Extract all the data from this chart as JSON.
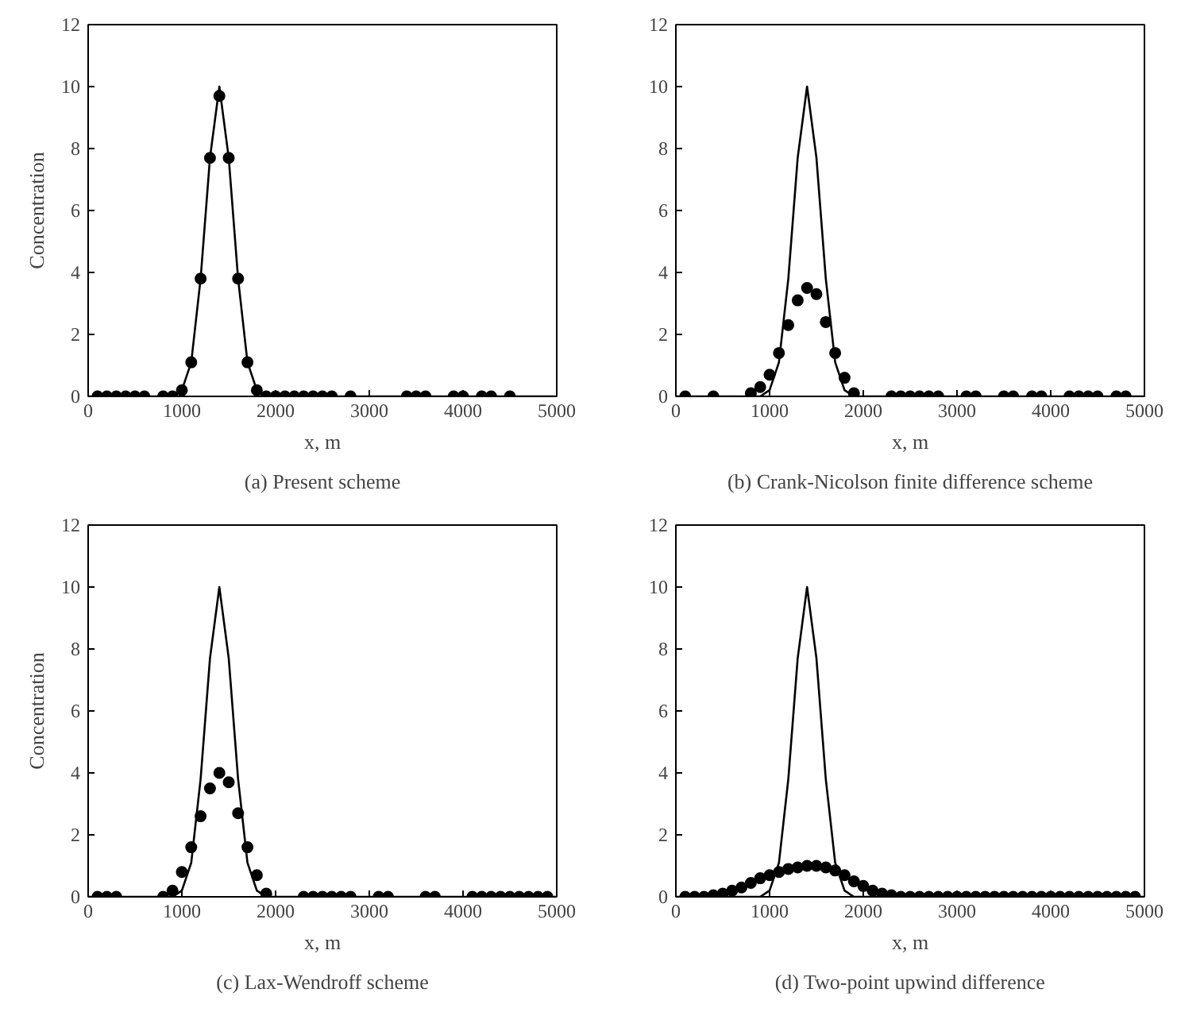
{
  "chart_data": [
    {
      "type": "line",
      "title": "(a) Present scheme",
      "xlabel": "x, m",
      "ylabel": "Concentration",
      "xlim": [
        0,
        5000
      ],
      "ylim": [
        0,
        12
      ],
      "xticks": [
        0,
        1000,
        2000,
        3000,
        4000,
        5000
      ],
      "yticks": [
        0,
        2,
        4,
        6,
        8,
        10,
        12
      ],
      "grid": false,
      "series": [
        {
          "color": "#000000",
          "marker": "none",
          "x": [
            0,
            900,
            1000,
            1100,
            1200,
            1300,
            1400,
            1500,
            1600,
            1700,
            1800,
            1900,
            5000
          ],
          "values": [
            0,
            0,
            0.2,
            1.1,
            3.8,
            7.7,
            10,
            7.7,
            3.8,
            1.1,
            0.2,
            0,
            0
          ]
        },
        {
          "type": "scatter",
          "color": "#000000",
          "marker": "circle",
          "x": [
            100,
            200,
            300,
            400,
            500,
            600,
            800,
            900,
            1000,
            1100,
            1200,
            1300,
            1400,
            1500,
            1600,
            1700,
            1800,
            1900,
            2000,
            2100,
            2200,
            2300,
            2400,
            2500,
            2600,
            2800,
            3400,
            3500,
            3600,
            3900,
            4000,
            4200,
            4300,
            4500
          ],
          "values": [
            0,
            0,
            0,
            0,
            0,
            0,
            0,
            0,
            0.2,
            1.1,
            3.8,
            7.7,
            9.7,
            7.7,
            3.8,
            1.1,
            0.2,
            0,
            0,
            0,
            0,
            0,
            0,
            0,
            0,
            0,
            0,
            0,
            0,
            0,
            0,
            0,
            0,
            0
          ]
        }
      ]
    },
    {
      "type": "line",
      "title": "(b) Crank-Nicolson finite difference scheme",
      "xlabel": "x, m",
      "xlim": [
        0,
        5000
      ],
      "ylim": [
        0,
        12
      ],
      "xticks": [
        0,
        1000,
        2000,
        3000,
        4000,
        5000
      ],
      "yticks": [
        0,
        2,
        4,
        6,
        8,
        10,
        12
      ],
      "grid": false,
      "series": [
        {
          "color": "#000000",
          "marker": "none",
          "x": [
            0,
            900,
            1000,
            1100,
            1200,
            1300,
            1400,
            1500,
            1600,
            1700,
            1800,
            1900,
            5000
          ],
          "values": [
            0,
            0,
            0.2,
            1.1,
            3.8,
            7.7,
            10,
            7.7,
            3.8,
            1.1,
            0.2,
            0,
            0
          ]
        },
        {
          "type": "scatter",
          "color": "#000000",
          "marker": "circle",
          "x": [
            100,
            400,
            800,
            900,
            1000,
            1100,
            1200,
            1300,
            1400,
            1500,
            1600,
            1700,
            1800,
            1900,
            2300,
            2400,
            2500,
            2600,
            2700,
            2800,
            3100,
            3200,
            3500,
            3600,
            3800,
            3900,
            4200,
            4300,
            4400,
            4500,
            4700,
            4800
          ],
          "values": [
            0,
            0,
            0.1,
            0.3,
            0.7,
            1.4,
            2.3,
            3.1,
            3.5,
            3.3,
            2.4,
            1.4,
            0.6,
            0.1,
            0,
            0,
            0,
            0,
            0,
            0,
            0,
            0,
            0,
            0,
            0,
            0,
            0,
            0,
            0,
            0,
            0,
            0
          ]
        }
      ]
    },
    {
      "type": "line",
      "title": "(c) Lax-Wendroff scheme",
      "xlabel": "x, m",
      "ylabel": "Concentration",
      "xlim": [
        0,
        5000
      ],
      "ylim": [
        0,
        12
      ],
      "xticks": [
        0,
        1000,
        2000,
        3000,
        4000,
        5000
      ],
      "yticks": [
        0,
        2,
        4,
        6,
        8,
        10,
        12
      ],
      "grid": false,
      "series": [
        {
          "color": "#000000",
          "marker": "none",
          "x": [
            0,
            900,
            1000,
            1100,
            1200,
            1300,
            1400,
            1500,
            1600,
            1700,
            1800,
            1900,
            5000
          ],
          "values": [
            0,
            0,
            0.2,
            1.1,
            3.8,
            7.7,
            10,
            7.7,
            3.8,
            1.1,
            0.2,
            0,
            0
          ]
        },
        {
          "type": "scatter",
          "color": "#000000",
          "marker": "circle",
          "x": [
            100,
            200,
            300,
            800,
            900,
            1000,
            1100,
            1200,
            1300,
            1400,
            1500,
            1600,
            1700,
            1800,
            1900,
            2300,
            2400,
            2500,
            2600,
            2700,
            2800,
            3100,
            3200,
            3600,
            3700,
            4100,
            4200,
            4300,
            4400,
            4500,
            4600,
            4700,
            4800,
            4900
          ],
          "values": [
            0,
            0,
            0,
            0,
            0.2,
            0.8,
            1.6,
            2.6,
            3.5,
            4.0,
            3.7,
            2.7,
            1.6,
            0.7,
            0.1,
            0,
            0,
            0,
            0,
            0,
            0,
            0,
            0,
            0,
            0,
            0,
            0,
            0,
            0,
            0,
            0,
            0,
            0,
            0
          ]
        }
      ]
    },
    {
      "type": "line",
      "title": "(d) Two-point upwind difference",
      "xlabel": "x, m",
      "xlim": [
        0,
        5000
      ],
      "ylim": [
        0,
        12
      ],
      "xticks": [
        0,
        1000,
        2000,
        3000,
        4000,
        5000
      ],
      "yticks": [
        0,
        2,
        4,
        6,
        8,
        10,
        12
      ],
      "grid": false,
      "series": [
        {
          "color": "#000000",
          "marker": "none",
          "x": [
            0,
            900,
            1000,
            1100,
            1200,
            1300,
            1400,
            1500,
            1600,
            1700,
            1800,
            1900,
            5000
          ],
          "values": [
            0,
            0,
            0.2,
            1.1,
            3.8,
            7.7,
            10,
            7.7,
            3.8,
            1.1,
            0.2,
            0,
            0
          ]
        },
        {
          "type": "scatter",
          "color": "#000000",
          "marker": "circle",
          "x": [
            100,
            200,
            300,
            400,
            500,
            600,
            700,
            800,
            900,
            1000,
            1100,
            1200,
            1300,
            1400,
            1500,
            1600,
            1700,
            1800,
            1900,
            2000,
            2100,
            2200,
            2300,
            2400,
            2500,
            2600,
            2700,
            2800,
            2900,
            3000,
            3100,
            3200,
            3300,
            3400,
            3500,
            3600,
            3700,
            3800,
            3900,
            4000,
            4100,
            4200,
            4300,
            4400,
            4500,
            4600,
            4700,
            4800,
            4900
          ],
          "values": [
            0,
            0,
            0,
            0.05,
            0.1,
            0.2,
            0.3,
            0.45,
            0.6,
            0.7,
            0.8,
            0.9,
            0.95,
            1.0,
            1.0,
            0.95,
            0.85,
            0.7,
            0.5,
            0.35,
            0.2,
            0.1,
            0.05,
            0,
            0,
            0,
            0,
            0,
            0,
            0,
            0,
            0,
            0,
            0,
            0,
            0,
            0,
            0,
            0,
            0,
            0,
            0,
            0,
            0,
            0,
            0,
            0,
            0,
            0
          ]
        }
      ]
    }
  ]
}
